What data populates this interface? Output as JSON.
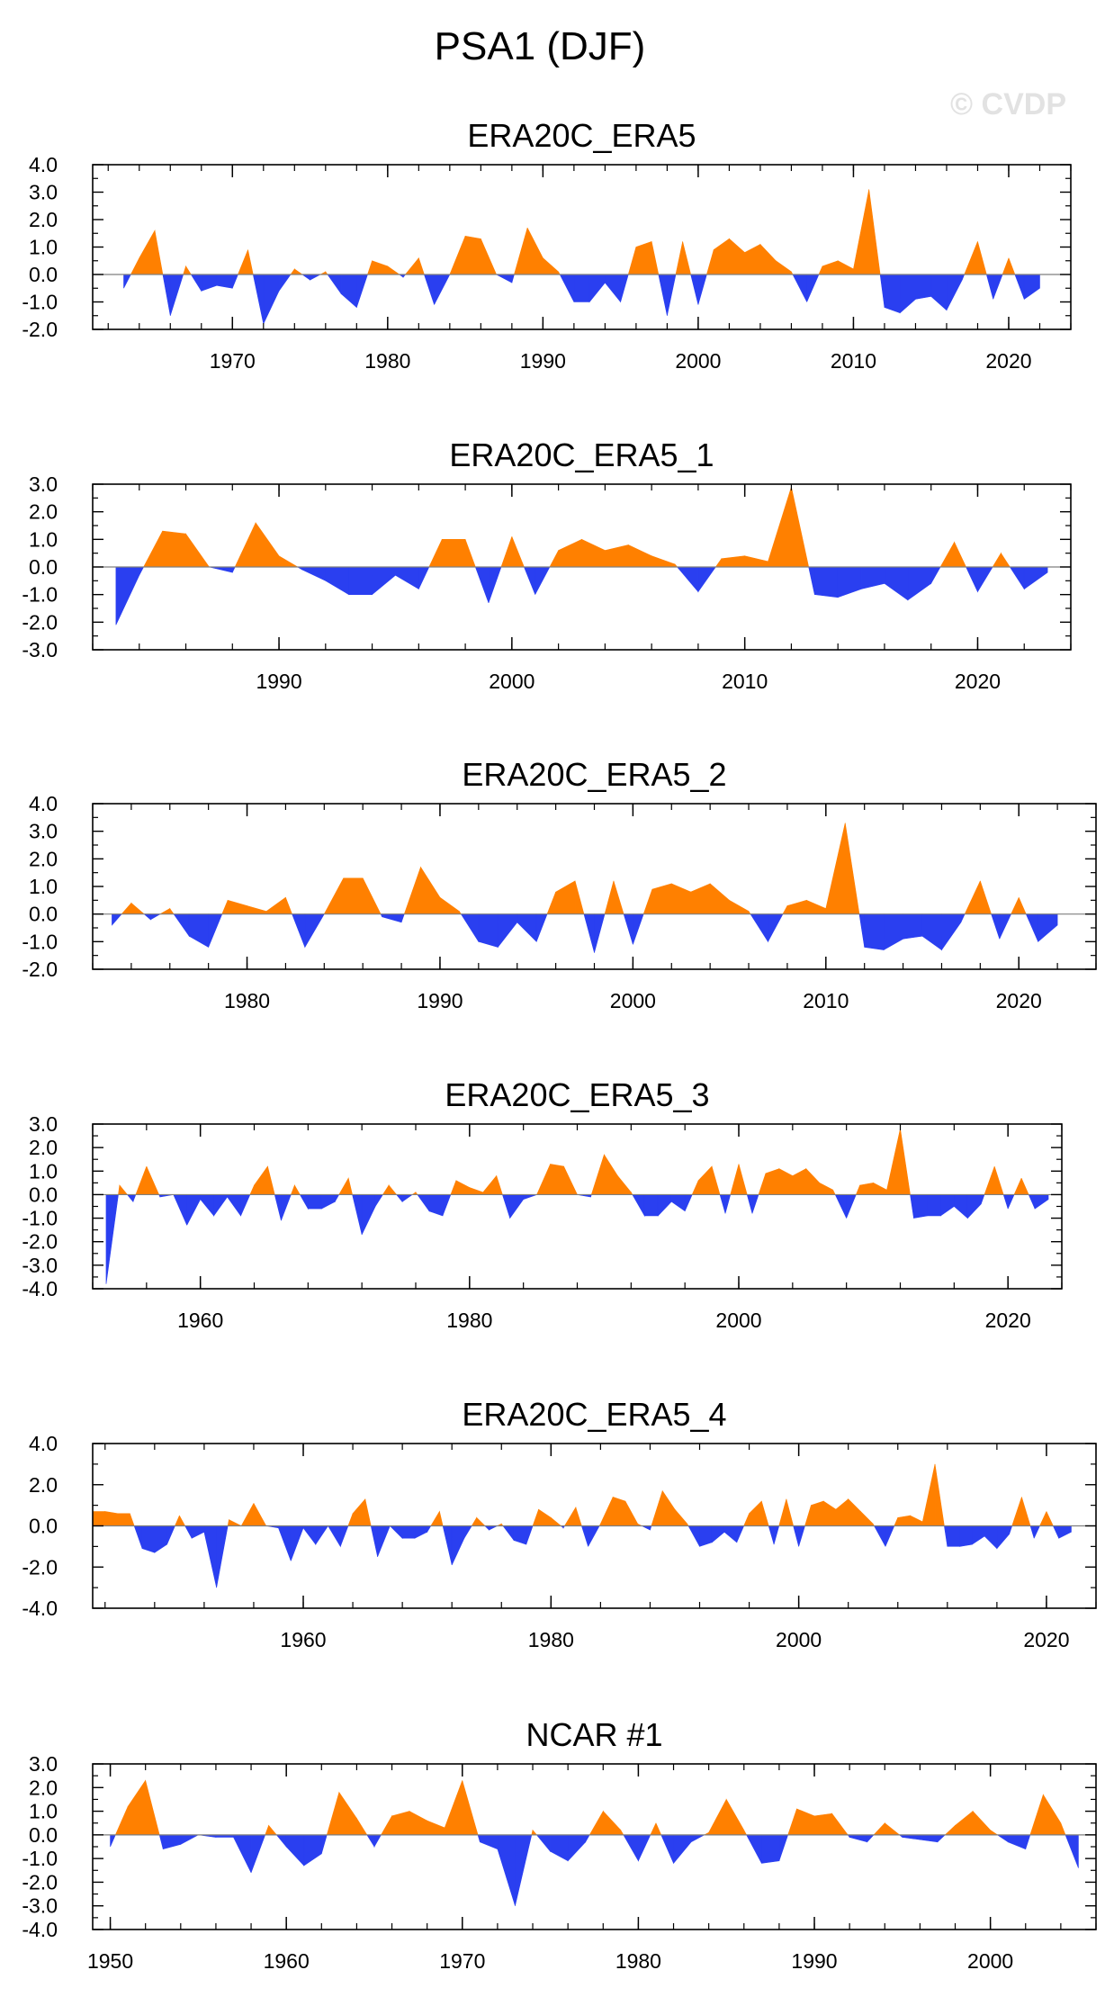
{
  "title": "PSA1 (DJF)",
  "watermark": "© CVDP",
  "colors": {
    "positive": "#ff8000",
    "negative": "#2a3ff0",
    "zero_line": "#7f7f7f",
    "frame": "#000000"
  },
  "chart_data": [
    {
      "type": "area",
      "title": "ERA20C_ERA5",
      "ylim": [
        -2,
        4
      ],
      "yticks": [
        -2,
        -1,
        0,
        1,
        2,
        3,
        4
      ],
      "ytick_labels": [
        "-2.0",
        "-1.0",
        "0.0",
        "1.0",
        "2.0",
        "3.0",
        "4.0"
      ],
      "xlim": [
        1961,
        2024
      ],
      "xticks": [
        1970,
        1980,
        1990,
        2000,
        2010,
        2020
      ],
      "x_start": 1963,
      "values": [
        -0.5,
        0.6,
        1.6,
        -1.5,
        0.3,
        -0.6,
        -0.4,
        -0.5,
        0.9,
        -1.8,
        -0.6,
        0.2,
        -0.2,
        0.1,
        -0.7,
        -1.2,
        0.5,
        0.3,
        -0.1,
        0.6,
        -1.1,
        0.0,
        1.4,
        1.3,
        0.0,
        -0.3,
        1.7,
        0.6,
        0.1,
        -1.0,
        -1.0,
        -0.3,
        -1.0,
        1.0,
        1.2,
        -1.5,
        1.2,
        -1.1,
        0.9,
        1.3,
        0.8,
        1.1,
        0.5,
        0.1,
        -1.0,
        0.3,
        0.5,
        0.2,
        3.1,
        -1.2,
        -1.4,
        -0.9,
        -0.8,
        -1.3,
        -0.2,
        1.2,
        -0.9,
        0.6,
        -0.9,
        -0.5
      ]
    },
    {
      "type": "area",
      "title": "ERA20C_ERA5_1",
      "ylim": [
        -3,
        3
      ],
      "yticks": [
        -3,
        -2,
        -1,
        0,
        1,
        2,
        3
      ],
      "ytick_labels": [
        "-3.0",
        "-2.0",
        "-1.0",
        "0.0",
        "1.0",
        "2.0",
        "3.0"
      ],
      "xlim": [
        1982,
        2024
      ],
      "xticks": [
        1990,
        2000,
        2010,
        2020
      ],
      "x_start": 1983,
      "values": [
        -2.1,
        -0.3,
        1.3,
        1.2,
        0.0,
        -0.2,
        1.6,
        0.4,
        -0.1,
        -0.5,
        -1.0,
        -1.0,
        -0.3,
        -0.8,
        1.0,
        1.0,
        -1.3,
        1.1,
        -1.0,
        0.6,
        1.0,
        0.6,
        0.8,
        0.4,
        0.1,
        -0.9,
        0.3,
        0.4,
        0.2,
        2.9,
        -1.0,
        -1.1,
        -0.8,
        -0.6,
        -1.2,
        -0.6,
        0.9,
        -0.9,
        0.5,
        -0.8,
        -0.2
      ]
    },
    {
      "type": "area",
      "title": "ERA20C_ERA5_2",
      "ylim": [
        -2,
        4
      ],
      "yticks": [
        -2,
        -1,
        0,
        1,
        2,
        3,
        4
      ],
      "ytick_labels": [
        "-2.0",
        "-1.0",
        "0.0",
        "1.0",
        "2.0",
        "3.0",
        "4.0"
      ],
      "xlim": [
        1972,
        2024
      ],
      "xticks": [
        1980,
        1990,
        2000,
        2010,
        2020
      ],
      "x_start": 1973,
      "values": [
        -0.4,
        0.4,
        -0.2,
        0.2,
        -0.8,
        -1.2,
        0.5,
        0.3,
        0.1,
        0.6,
        -1.2,
        0.0,
        1.3,
        1.3,
        -0.1,
        -0.3,
        1.7,
        0.6,
        0.1,
        -1.0,
        -1.2,
        -0.3,
        -1.0,
        0.8,
        1.2,
        -1.4,
        1.2,
        -1.1,
        0.9,
        1.1,
        0.8,
        1.1,
        0.5,
        0.1,
        -1.0,
        0.3,
        0.5,
        0.2,
        3.3,
        -1.2,
        -1.3,
        -0.9,
        -0.8,
        -1.3,
        -0.3,
        1.2,
        -0.9,
        0.6,
        -1.0,
        -0.4
      ]
    },
    {
      "type": "area",
      "title": "ERA20C_ERA5_3",
      "ylim": [
        -4,
        3
      ],
      "yticks": [
        -4,
        -3,
        -2,
        -1,
        0,
        1,
        2,
        3
      ],
      "ytick_labels": [
        "-4.0",
        "-3.0",
        "-2.0",
        "-1.0",
        "0.0",
        "1.0",
        "2.0",
        "3.0"
      ],
      "xlim": [
        1952,
        2024
      ],
      "xticks": [
        1960,
        1980,
        2000,
        2020
      ],
      "x_start": 1953,
      "values": [
        -3.8,
        0.4,
        -0.3,
        1.2,
        -0.1,
        0.0,
        -1.3,
        -0.2,
        -0.9,
        -0.1,
        -0.9,
        0.4,
        1.2,
        -1.1,
        0.4,
        -0.6,
        -0.6,
        -0.3,
        0.7,
        -1.7,
        -0.5,
        0.4,
        -0.3,
        0.1,
        -0.7,
        -0.9,
        0.6,
        0.3,
        0.1,
        0.8,
        -1.0,
        -0.2,
        0.0,
        1.3,
        1.2,
        0.0,
        -0.1,
        1.7,
        0.8,
        0.1,
        -0.9,
        -0.9,
        -0.3,
        -0.7,
        0.6,
        1.2,
        -0.8,
        1.3,
        -0.8,
        0.9,
        1.1,
        0.8,
        1.1,
        0.5,
        0.2,
        -1.0,
        0.4,
        0.5,
        0.2,
        2.8,
        -1.0,
        -0.9,
        -0.9,
        -0.5,
        -1.0,
        -0.4,
        1.2,
        -0.6,
        0.7,
        -0.6,
        -0.2
      ]
    },
    {
      "type": "area",
      "title": "ERA20C_ERA5_4",
      "ylim": [
        -4,
        4
      ],
      "yticks": [
        -4,
        -2,
        0,
        2,
        4
      ],
      "ytick_labels": [
        "-4.0",
        "-2.0",
        "0.0",
        "2.0",
        "4.0"
      ],
      "xlim": [
        1943,
        2024
      ],
      "xticks": [
        1960,
        1980,
        2000,
        2020
      ],
      "x_start": 1943,
      "values": [
        0.7,
        0.7,
        0.6,
        0.6,
        -1.1,
        -1.3,
        -0.9,
        0.5,
        -0.6,
        -0.3,
        -3.0,
        0.3,
        0.0,
        1.1,
        0.0,
        -0.1,
        -1.7,
        -0.1,
        -0.9,
        0.0,
        -1.0,
        0.6,
        1.3,
        -1.5,
        0.0,
        -0.6,
        -0.6,
        -0.3,
        0.7,
        -1.9,
        -0.6,
        0.4,
        -0.2,
        0.1,
        -0.7,
        -0.9,
        0.8,
        0.4,
        -0.1,
        0.9,
        -1.0,
        0.1,
        1.4,
        1.2,
        0.1,
        -0.2,
        1.7,
        0.8,
        0.1,
        -1.0,
        -0.8,
        -0.3,
        -0.8,
        0.6,
        1.2,
        -0.9,
        1.3,
        -1.0,
        1.0,
        1.2,
        0.8,
        1.3,
        0.7,
        0.1,
        -1.0,
        0.4,
        0.5,
        0.2,
        3.0,
        -1.0,
        -1.0,
        -0.9,
        -0.5,
        -1.1,
        -0.4,
        1.4,
        -0.6,
        0.7,
        -0.6,
        -0.3
      ]
    },
    {
      "type": "area",
      "title": "NCAR #1",
      "ylim": [
        -4,
        3
      ],
      "yticks": [
        -4,
        -3,
        -2,
        -1,
        0,
        1,
        2,
        3
      ],
      "ytick_labels": [
        "-4.0",
        "-3.0",
        "-2.0",
        "-1.0",
        "0.0",
        "1.0",
        "2.0",
        "3.0"
      ],
      "xlim": [
        1949,
        2006
      ],
      "xticks": [
        1950,
        1960,
        1970,
        1980,
        1990,
        2000
      ],
      "x_start": 1950,
      "values": [
        -0.5,
        1.2,
        2.3,
        -0.6,
        -0.4,
        0.0,
        -0.1,
        -0.1,
        -1.6,
        0.4,
        -0.5,
        -1.3,
        -0.8,
        1.8,
        0.7,
        -0.5,
        0.8,
        1.0,
        0.6,
        0.3,
        2.3,
        -0.3,
        -0.6,
        -3.0,
        0.2,
        -0.7,
        -1.1,
        -0.3,
        1.0,
        0.2,
        -1.1,
        0.5,
        -1.2,
        -0.3,
        0.1,
        1.5,
        0.2,
        -1.2,
        -1.1,
        1.1,
        0.8,
        0.9,
        -0.1,
        -0.3,
        0.5,
        -0.1,
        -0.2,
        -0.3,
        0.4,
        1.0,
        0.2,
        -0.3,
        -0.6,
        1.7,
        0.5,
        -1.4
      ]
    }
  ]
}
